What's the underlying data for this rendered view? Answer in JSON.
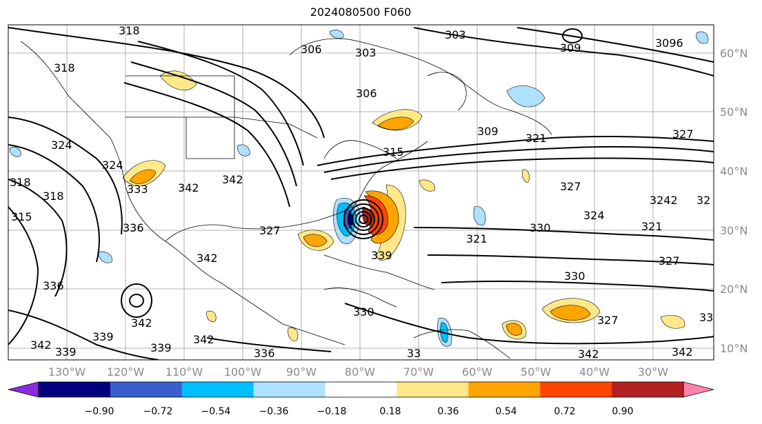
{
  "title": "2024080500 F060",
  "lon_labels": [
    "130°W",
    "120°W",
    "110°W",
    "100°W",
    "90°W",
    "80°W",
    "70°W",
    "60°W",
    "50°W",
    "40°W",
    "30°W"
  ],
  "lat_labels": [
    "60°N",
    "50°N",
    "40°N",
    "30°N",
    "20°N",
    "10°N"
  ],
  "colorbar": {
    "ticks": [
      "−0.90",
      "−0.72",
      "−0.54",
      "−0.36",
      "−0.18",
      "0.18",
      "0.36",
      "0.54",
      "0.72",
      "0.90"
    ],
    "colors": [
      "#8a2be2",
      "#000080",
      "#3a5fcd",
      "#00bfff",
      "#aee0ff",
      "#ffffff",
      "#ffe88a",
      "#ffa500",
      "#ff4500",
      "#b22222",
      "#ff82ab"
    ]
  },
  "contour_labels": [
    {
      "id": "c318a",
      "text": "318"
    },
    {
      "id": "c306a",
      "text": "306"
    },
    {
      "id": "c303a",
      "text": "303"
    },
    {
      "id": "c303b",
      "text": "303"
    },
    {
      "id": "c306b",
      "text": "306"
    },
    {
      "id": "c309a",
      "text": "309"
    },
    {
      "id": "c3096",
      "text": "3096"
    },
    {
      "id": "c318b",
      "text": "318"
    },
    {
      "id": "c324a",
      "text": "324"
    },
    {
      "id": "c318c",
      "text": "318"
    },
    {
      "id": "c318d",
      "text": "318"
    },
    {
      "id": "c315a",
      "text": "315"
    },
    {
      "id": "c324b",
      "text": "324"
    },
    {
      "id": "c333a",
      "text": "333"
    },
    {
      "id": "c342a",
      "text": "342"
    },
    {
      "id": "c342b",
      "text": "342"
    },
    {
      "id": "c336a",
      "text": "336"
    },
    {
      "id": "c327a",
      "text": "327"
    },
    {
      "id": "c342c",
      "text": "342"
    },
    {
      "id": "c315b",
      "text": "315"
    },
    {
      "id": "c309b",
      "text": "309"
    },
    {
      "id": "c321a",
      "text": "321"
    },
    {
      "id": "c327b",
      "text": "327"
    },
    {
      "id": "c327c",
      "text": "327"
    },
    {
      "id": "c324c",
      "text": "324"
    },
    {
      "id": "c3242",
      "text": "3242"
    },
    {
      "id": "c32a",
      "text": "32"
    },
    {
      "id": "c321b",
      "text": "321"
    },
    {
      "id": "c330a",
      "text": "330"
    },
    {
      "id": "c321c",
      "text": "321"
    },
    {
      "id": "c327d",
      "text": "327"
    },
    {
      "id": "c330b",
      "text": "330"
    },
    {
      "id": "c330c",
      "text": "330"
    },
    {
      "id": "c336b",
      "text": "336"
    },
    {
      "id": "c342d",
      "text": "342"
    },
    {
      "id": "c339a",
      "text": "339"
    },
    {
      "id": "c339b",
      "text": "339"
    },
    {
      "id": "c342e",
      "text": "342"
    },
    {
      "id": "c336c",
      "text": "336"
    },
    {
      "id": "c342f",
      "text": "342"
    },
    {
      "id": "c339c",
      "text": "339"
    },
    {
      "id": "c327e",
      "text": "327"
    },
    {
      "id": "c342g",
      "text": "342"
    },
    {
      "id": "c342h",
      "text": "342"
    },
    {
      "id": "c33a",
      "text": "33"
    },
    {
      "id": "c339d",
      "text": "339"
    },
    {
      "id": "c33b",
      "text": "33"
    }
  ]
}
